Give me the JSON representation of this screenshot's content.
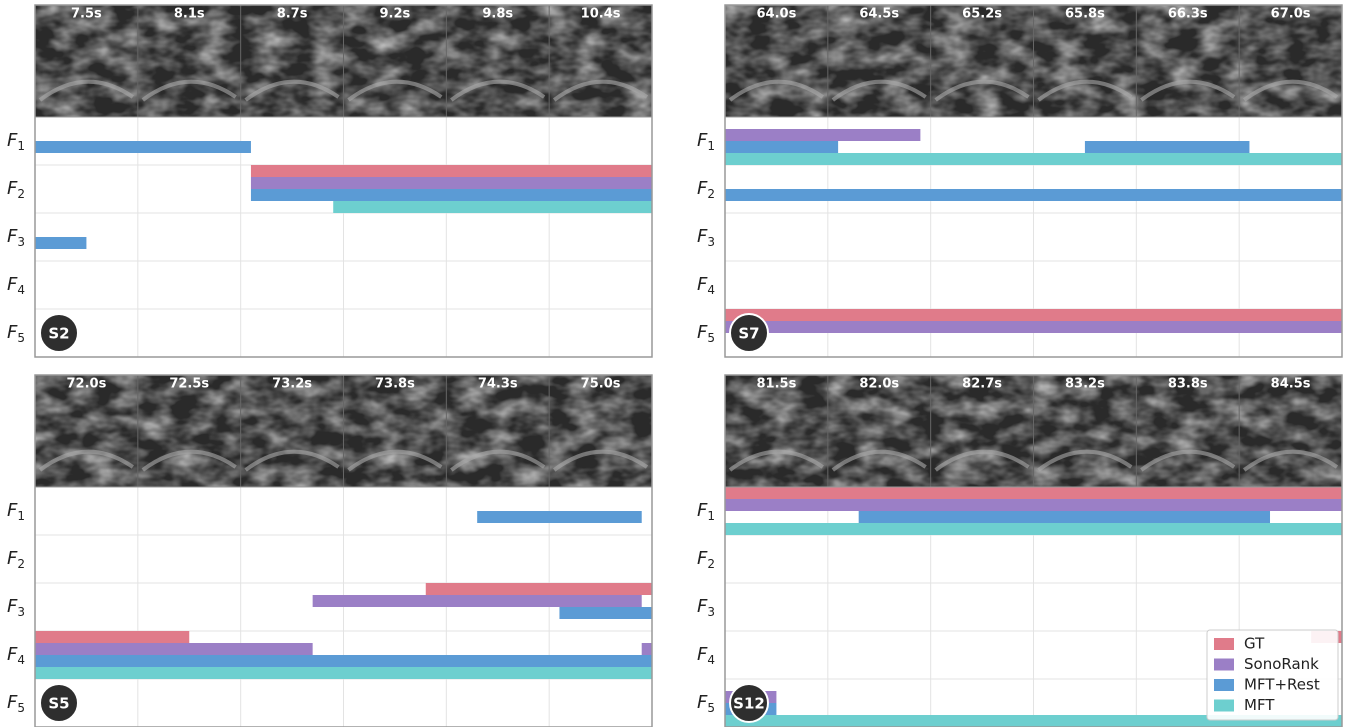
{
  "chart_data": {
    "type": "timeline",
    "series": [
      {
        "name": "GT",
        "color": "#e07b8a"
      },
      {
        "name": "SonoRank",
        "color": "#9b7fc6"
      },
      {
        "name": "MFT+Rest",
        "color": "#5b9bd5"
      },
      {
        "name": "MFT",
        "color": "#6dcfcf"
      }
    ],
    "xlim": [
      0,
      6
    ],
    "panels": [
      {
        "label": "S2",
        "frames": [
          "7.5s",
          "8.1s",
          "8.7s",
          "9.2s",
          "9.8s",
          "10.4s"
        ],
        "row_labels": [
          {
            "letter": "F",
            "index": "1"
          },
          {
            "letter": "F",
            "index": "2"
          },
          {
            "letter": "F",
            "index": "3"
          },
          {
            "letter": "F",
            "index": "4"
          },
          {
            "letter": "F",
            "index": "5"
          }
        ],
        "bars": [
          {
            "row": 0,
            "series": 2,
            "start": 0,
            "end": 2.1
          },
          {
            "row": 1,
            "series": 0,
            "start": 2.1,
            "end": 6
          },
          {
            "row": 1,
            "series": 1,
            "start": 2.1,
            "end": 6
          },
          {
            "row": 1,
            "series": 2,
            "start": 2.1,
            "end": 6
          },
          {
            "row": 1,
            "series": 3,
            "start": 2.9,
            "end": 6
          },
          {
            "row": 2,
            "series": 2,
            "start": 0,
            "end": 0.5
          }
        ]
      },
      {
        "label": "S7",
        "frames": [
          "64.0s",
          "64.5s",
          "65.2s",
          "65.8s",
          "66.3s",
          "67.0s"
        ],
        "row_labels": [
          {
            "letter": "F",
            "index": "1"
          },
          {
            "letter": "F",
            "index": "2"
          },
          {
            "letter": "F",
            "index": "3"
          },
          {
            "letter": "F",
            "index": "4"
          },
          {
            "letter": "F",
            "index": "5"
          }
        ],
        "bars": [
          {
            "row": 0,
            "series": 1,
            "start": 0,
            "end": 1.9
          },
          {
            "row": 0,
            "series": 2,
            "start": 0,
            "end": 1.1
          },
          {
            "row": 0,
            "series": 2,
            "start": 3.5,
            "end": 5.1
          },
          {
            "row": 0,
            "series": 3,
            "start": 0,
            "end": 6
          },
          {
            "row": 1,
            "series": 2,
            "start": 0,
            "end": 6
          },
          {
            "row": 4,
            "series": 0,
            "start": 0,
            "end": 6
          },
          {
            "row": 4,
            "series": 1,
            "start": 0,
            "end": 6
          }
        ]
      },
      {
        "label": "S5",
        "frames": [
          "72.0s",
          "72.5s",
          "73.2s",
          "73.8s",
          "74.3s",
          "75.0s"
        ],
        "row_labels": [
          {
            "letter": "F",
            "index": "1"
          },
          {
            "letter": "F",
            "index": "2"
          },
          {
            "letter": "F",
            "index": "3"
          },
          {
            "letter": "F",
            "index": "4"
          },
          {
            "letter": "F",
            "index": "5"
          }
        ],
        "bars": [
          {
            "row": 0,
            "series": 2,
            "start": 4.3,
            "end": 5.9
          },
          {
            "row": 2,
            "series": 0,
            "start": 3.8,
            "end": 6
          },
          {
            "row": 2,
            "series": 1,
            "start": 2.7,
            "end": 5.9
          },
          {
            "row": 2,
            "series": 2,
            "start": 5.1,
            "end": 6
          },
          {
            "row": 3,
            "series": 0,
            "start": 0,
            "end": 1.5
          },
          {
            "row": 3,
            "series": 1,
            "start": 0,
            "end": 2.7
          },
          {
            "row": 3,
            "series": 1,
            "start": 5.9,
            "end": 6
          },
          {
            "row": 3,
            "series": 2,
            "start": 0,
            "end": 6
          },
          {
            "row": 3,
            "series": 3,
            "start": 0,
            "end": 6
          }
        ]
      },
      {
        "label": "S12",
        "frames": [
          "81.5s",
          "82.0s",
          "82.7s",
          "83.2s",
          "83.8s",
          "84.5s"
        ],
        "row_labels": [
          {
            "letter": "F",
            "index": "1"
          },
          {
            "letter": "F",
            "index": "2"
          },
          {
            "letter": "F",
            "index": "3"
          },
          {
            "letter": "F",
            "index": "4"
          },
          {
            "letter": "F",
            "index": "5"
          }
        ],
        "bars": [
          {
            "row": 0,
            "series": 0,
            "start": 0,
            "end": 6
          },
          {
            "row": 0,
            "series": 1,
            "start": 0,
            "end": 6
          },
          {
            "row": 0,
            "series": 2,
            "start": 1.3,
            "end": 5.3
          },
          {
            "row": 0,
            "series": 3,
            "start": 0,
            "end": 6
          },
          {
            "row": 3,
            "series": 0,
            "start": 5.7,
            "end": 6
          },
          {
            "row": 4,
            "series": 1,
            "start": 0,
            "end": 0.5
          },
          {
            "row": 4,
            "series": 2,
            "start": 0,
            "end": 0.5
          },
          {
            "row": 4,
            "series": 3,
            "start": 0,
            "end": 6
          }
        ]
      }
    ]
  }
}
